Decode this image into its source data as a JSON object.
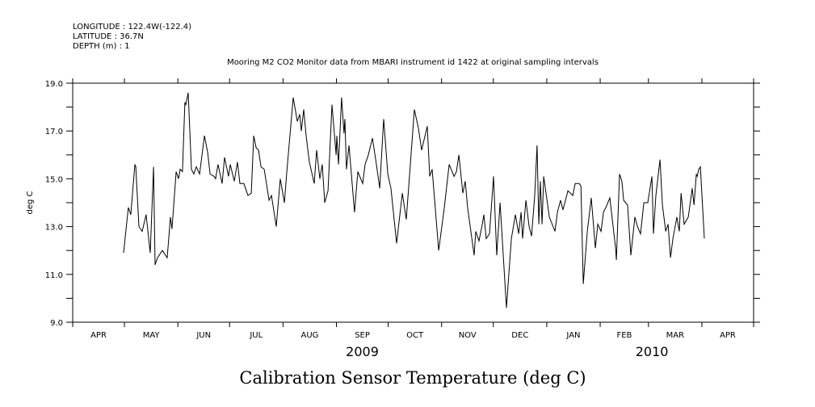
{
  "chart_data": {
    "type": "line",
    "header": {
      "longitude": "LONGITUDE : 122.4W(-122.4)",
      "latitude": "LATITUDE : 36.7N",
      "depth": "DEPTH (m) : 1"
    },
    "title": "Mooring M2 CO2 Monitor data from MBARI instrument id 1422 at original sampling intervals",
    "xlabel": "Calibration Sensor Temperature (deg C)",
    "ylabel": "deg C",
    "ylim": [
      9.0,
      19.0
    ],
    "yticks": [
      "9.0",
      "11.0",
      "13.0",
      "15.0",
      "17.0",
      "19.0"
    ],
    "x_unit": "days since 2009-04-01",
    "xlim": [
      0,
      395
    ],
    "month_ticks": [
      0,
      30,
      61,
      91,
      122,
      153,
      183,
      214,
      244,
      275,
      306,
      334,
      365,
      395
    ],
    "month_labels": [
      "APR",
      "MAY",
      "JUN",
      "JUL",
      "AUG",
      "SEP",
      "OCT",
      "NOV",
      "DEC",
      "JAN",
      "FEB",
      "MAR",
      "APR"
    ],
    "year_labels": [
      {
        "label": "2009",
        "day": 168
      },
      {
        "label": "2010",
        "day": 336
      }
    ],
    "grid": false,
    "series": [
      {
        "name": "Calibration Sensor Temperature",
        "points": [
          [
            29.5,
            11.9
          ],
          [
            32.3,
            13.8
          ],
          [
            33.7,
            13.5
          ],
          [
            36.1,
            15.6
          ],
          [
            36.6,
            15.5
          ],
          [
            38.4,
            13.0
          ],
          [
            40.3,
            12.8
          ],
          [
            42.6,
            13.5
          ],
          [
            45,
            11.9
          ],
          [
            46.9,
            15.5
          ],
          [
            47.8,
            11.4
          ],
          [
            49.2,
            11.7
          ],
          [
            52,
            12.0
          ],
          [
            54.8,
            11.7
          ],
          [
            56.7,
            13.4
          ],
          [
            57.6,
            12.9
          ],
          [
            60,
            15.3
          ],
          [
            61.4,
            15.0
          ],
          [
            62.3,
            15.4
          ],
          [
            63.7,
            15.3
          ],
          [
            65.1,
            18.2
          ],
          [
            65.6,
            18.1
          ],
          [
            67,
            18.6
          ],
          [
            68.9,
            15.4
          ],
          [
            70.3,
            15.2
          ],
          [
            71.7,
            15.5
          ],
          [
            73.6,
            15.2
          ],
          [
            76.4,
            16.8
          ],
          [
            78.3,
            16.1
          ],
          [
            79.7,
            15.2
          ],
          [
            82,
            15.1
          ],
          [
            82.9,
            15.0
          ],
          [
            84.3,
            15.6
          ],
          [
            86.7,
            14.8
          ],
          [
            88.1,
            15.9
          ],
          [
            90.4,
            15.1
          ],
          [
            91.4,
            15.6
          ],
          [
            93.7,
            14.9
          ],
          [
            95.6,
            15.7
          ],
          [
            97,
            14.8
          ],
          [
            99.3,
            14.8
          ],
          [
            101.7,
            14.3
          ],
          [
            103.6,
            14.4
          ],
          [
            105,
            16.8
          ],
          [
            106.4,
            16.3
          ],
          [
            107.8,
            16.2
          ],
          [
            109.2,
            15.5
          ],
          [
            111.1,
            15.4
          ],
          [
            113.9,
            14.1
          ],
          [
            115.3,
            14.3
          ],
          [
            118.1,
            13.0
          ],
          [
            120.4,
            15.0
          ],
          [
            122.8,
            14.0
          ],
          [
            124.2,
            15.3
          ],
          [
            127.9,
            18.4
          ],
          [
            130.3,
            17.4
          ],
          [
            131.7,
            17.7
          ],
          [
            132.6,
            17.0
          ],
          [
            134,
            17.9
          ],
          [
            135.4,
            16.8
          ],
          [
            137.3,
            15.7
          ],
          [
            140.1,
            14.8
          ],
          [
            141.5,
            16.2
          ],
          [
            143.4,
            15.0
          ],
          [
            144.8,
            15.6
          ],
          [
            146.2,
            14.0
          ],
          [
            148.1,
            14.5
          ],
          [
            150.4,
            18.1
          ],
          [
            152.8,
            16.0
          ],
          [
            153.2,
            16.8
          ],
          [
            154.2,
            15.6
          ],
          [
            156,
            18.4
          ],
          [
            157.4,
            16.9
          ],
          [
            157.9,
            17.5
          ],
          [
            158.8,
            15.4
          ],
          [
            160.3,
            16.4
          ],
          [
            163.5,
            13.6
          ],
          [
            165.4,
            15.3
          ],
          [
            168.2,
            14.8
          ],
          [
            169.6,
            15.6
          ],
          [
            171.5,
            16.0
          ],
          [
            173.9,
            16.7
          ],
          [
            176.2,
            15.6
          ],
          [
            178.1,
            14.6
          ],
          [
            180.4,
            17.5
          ],
          [
            182.8,
            15.2
          ],
          [
            184.6,
            14.6
          ],
          [
            187.9,
            12.3
          ],
          [
            191.2,
            14.4
          ],
          [
            193.5,
            13.3
          ],
          [
            198.2,
            17.9
          ],
          [
            200.6,
            17.1
          ],
          [
            202.4,
            16.2
          ],
          [
            205.7,
            17.2
          ],
          [
            207.1,
            15.1
          ],
          [
            208.5,
            15.4
          ],
          [
            212.3,
            12.0
          ],
          [
            215.6,
            13.8
          ],
          [
            218.4,
            15.6
          ],
          [
            221.2,
            15.1
          ],
          [
            222.6,
            15.3
          ],
          [
            224,
            16.0
          ],
          [
            226.3,
            14.4
          ],
          [
            227.7,
            14.9
          ],
          [
            229.1,
            13.8
          ],
          [
            232.9,
            11.8
          ],
          [
            233.8,
            12.8
          ],
          [
            235.7,
            12.4
          ],
          [
            237.6,
            13.1
          ],
          [
            238.5,
            13.5
          ],
          [
            239.9,
            12.5
          ],
          [
            241.8,
            12.7
          ],
          [
            244.1,
            15.1
          ],
          [
            246,
            11.8
          ],
          [
            247.9,
            14.0
          ],
          [
            251.6,
            9.6
          ],
          [
            254.5,
            12.5
          ],
          [
            256.8,
            13.5
          ],
          [
            258.7,
            12.7
          ],
          [
            260.1,
            13.6
          ],
          [
            261,
            12.5
          ],
          [
            262.9,
            14.1
          ],
          [
            264.8,
            13.0
          ],
          [
            266.2,
            12.6
          ],
          [
            268,
            14.3
          ],
          [
            269.4,
            16.4
          ],
          [
            270.4,
            13.1
          ],
          [
            271.3,
            14.9
          ],
          [
            272.3,
            13.1
          ],
          [
            273.2,
            15.1
          ],
          [
            276.5,
            13.4
          ],
          [
            279.8,
            12.8
          ],
          [
            281.2,
            13.6
          ],
          [
            283,
            14.1
          ],
          [
            284.4,
            13.7
          ],
          [
            287.3,
            14.5
          ],
          [
            290.1,
            14.3
          ],
          [
            291.5,
            14.8
          ],
          [
            293.8,
            14.8
          ],
          [
            294.8,
            14.7
          ],
          [
            296.2,
            10.6
          ],
          [
            298.5,
            12.8
          ],
          [
            300.8,
            14.2
          ],
          [
            303.2,
            12.1
          ],
          [
            304.6,
            13.1
          ],
          [
            306.5,
            12.8
          ],
          [
            307.9,
            13.6
          ],
          [
            309.3,
            13.8
          ],
          [
            311.6,
            14.2
          ],
          [
            314.9,
            12.1
          ],
          [
            315.4,
            11.6
          ],
          [
            317.2,
            15.2
          ],
          [
            318.6,
            14.9
          ],
          [
            319.6,
            14.1
          ],
          [
            321.9,
            13.9
          ],
          [
            323.8,
            11.8
          ],
          [
            326.1,
            13.4
          ],
          [
            327.6,
            13.0
          ],
          [
            329.4,
            12.7
          ],
          [
            331.3,
            14.0
          ],
          [
            333.6,
            14.0
          ],
          [
            336,
            15.1
          ],
          [
            336.9,
            12.7
          ],
          [
            338.3,
            14.3
          ],
          [
            340.7,
            15.8
          ],
          [
            342.1,
            13.9
          ],
          [
            344,
            12.8
          ],
          [
            345.4,
            13.1
          ],
          [
            346.8,
            11.7
          ],
          [
            348.2,
            12.5
          ],
          [
            350.5,
            13.4
          ],
          [
            351.9,
            12.8
          ],
          [
            352.9,
            14.4
          ],
          [
            354.7,
            13.1
          ],
          [
            357.1,
            13.4
          ],
          [
            359.4,
            14.6
          ],
          [
            360.4,
            13.9
          ],
          [
            361.8,
            15.2
          ],
          [
            362.3,
            15.1
          ],
          [
            363.2,
            15.4
          ],
          [
            364.1,
            15.5
          ],
          [
            366.4,
            12.5
          ]
        ]
      }
    ]
  }
}
